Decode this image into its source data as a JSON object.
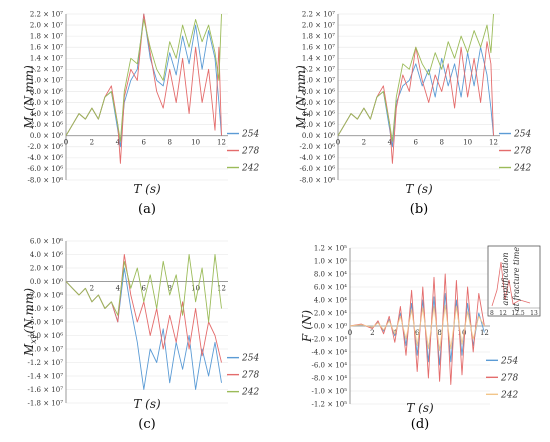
{
  "chart_data": [
    {
      "type": "line",
      "panel_label": "(a)",
      "xlabel": "T (s)",
      "ylabel": "Mx (N.mm)",
      "ylabel_main": "M",
      "ylabel_sub": "x",
      "ylabel_tail": "(N.mm)",
      "xlim": [
        0,
        12.5
      ],
      "ylim": [
        -8000000,
        22000000
      ],
      "x_ticks": [
        0,
        2,
        4,
        6,
        8,
        10,
        12
      ],
      "y_ticks": [
        {
          "v": 22000000,
          "t": "2.2 × 10⁷"
        },
        {
          "v": 20000000,
          "t": "2.0 × 10⁷"
        },
        {
          "v": 18000000,
          "t": "1.8 × 10⁷"
        },
        {
          "v": 16000000,
          "t": "1.6 × 10⁷"
        },
        {
          "v": 14000000,
          "t": "1.4 × 10⁷"
        },
        {
          "v": 12000000,
          "t": "1.2 × 10⁷"
        },
        {
          "v": 10000000,
          "t": "1.0 × 10⁷"
        },
        {
          "v": 8000000,
          "t": "8.0 × 10⁶"
        },
        {
          "v": 6000000,
          "t": "6.0 × 10⁶"
        },
        {
          "v": 4000000,
          "t": "4.0 × 10⁶"
        },
        {
          "v": 2000000,
          "t": "2.0 × 10⁶"
        },
        {
          "v": 0,
          "t": "0.0 × 10⁰"
        },
        {
          "v": -2000000,
          "t": "-2.0 × 10⁶"
        },
        {
          "v": -4000000,
          "t": "-4.0 × 10⁶"
        },
        {
          "v": -6000000,
          "t": "-6.0 × 10⁶"
        },
        {
          "v": -8000000,
          "t": "-8.0 × 10⁶"
        }
      ],
      "legend_position": "right",
      "series": [
        {
          "name": "254",
          "color": "#5b9bd5",
          "x": [
            0,
            0.5,
            1,
            1.5,
            2,
            2.5,
            3,
            3.5,
            4,
            4.2,
            4.5,
            5,
            5.5,
            6,
            6.5,
            7,
            7.5,
            8,
            8.5,
            9,
            9.5,
            10,
            10.5,
            11,
            11.5,
            11.8,
            12
          ],
          "y": [
            0,
            2000000,
            4000000,
            3000000,
            5000000,
            3000000,
            7000000,
            8000000,
            1000000,
            -2000000,
            6000000,
            10000000,
            12000000,
            22000000,
            14000000,
            10000000,
            9000000,
            15000000,
            11000000,
            18000000,
            13000000,
            20000000,
            12000000,
            19000000,
            14000000,
            6000000,
            0
          ]
        },
        {
          "name": "278",
          "color": "#e46c6c",
          "x": [
            0,
            0.5,
            1,
            1.5,
            2,
            2.5,
            3,
            3.5,
            4,
            4.2,
            4.5,
            5,
            5.5,
            6,
            6.5,
            7,
            7.5,
            8,
            8.5,
            9,
            9.5,
            10,
            10.5,
            11,
            11.5,
            11.8,
            12
          ],
          "y": [
            0,
            2000000,
            4000000,
            3000000,
            5000000,
            3000000,
            7000000,
            9000000,
            2000000,
            -5000000,
            7000000,
            12000000,
            10000000,
            22000000,
            15000000,
            8000000,
            5000000,
            12000000,
            6000000,
            14000000,
            4000000,
            16000000,
            6000000,
            12000000,
            1000000,
            16000000,
            0
          ]
        },
        {
          "name": "242",
          "color": "#9bbb59",
          "x": [
            0,
            0.5,
            1,
            1.5,
            2,
            2.5,
            3,
            3.5,
            4,
            4.2,
            4.5,
            5,
            5.5,
            6,
            6.5,
            7,
            7.5,
            8,
            8.5,
            9,
            9.5,
            10,
            10.5,
            11,
            11.5,
            11.8,
            12
          ],
          "y": [
            0,
            2000000,
            4000000,
            3000000,
            5000000,
            3000000,
            7000000,
            8000000,
            2000000,
            -1000000,
            8000000,
            14000000,
            13000000,
            21000000,
            16000000,
            12000000,
            10000000,
            17000000,
            14000000,
            20000000,
            16000000,
            21000000,
            17000000,
            20000000,
            15000000,
            10000000,
            22000000
          ]
        }
      ]
    },
    {
      "type": "line",
      "panel_label": "(b)",
      "xlabel": "T (s)",
      "ylabel": "My (N.mm)",
      "ylabel_main": "M",
      "ylabel_sub": "y",
      "ylabel_tail": "(N.mm)",
      "xlim": [
        0,
        12.5
      ],
      "ylim": [
        -8000000,
        22000000
      ],
      "x_ticks": [
        0,
        2,
        4,
        6,
        8,
        10,
        12
      ],
      "y_ticks": [
        {
          "v": 22000000,
          "t": "2.2 × 10⁷"
        },
        {
          "v": 20000000,
          "t": "2.0 × 10⁷"
        },
        {
          "v": 18000000,
          "t": "1.8 × 10⁷"
        },
        {
          "v": 16000000,
          "t": "1.6 × 10⁷"
        },
        {
          "v": 14000000,
          "t": "1.4 × 10⁷"
        },
        {
          "v": 12000000,
          "t": "1.2 × 10⁷"
        },
        {
          "v": 10000000,
          "t": "1.0 × 10⁷"
        },
        {
          "v": 8000000,
          "t": "8.0 × 10⁶"
        },
        {
          "v": 6000000,
          "t": "6.0 × 10⁶"
        },
        {
          "v": 4000000,
          "t": "4.0 × 10⁶"
        },
        {
          "v": 2000000,
          "t": "2.0 × 10⁶"
        },
        {
          "v": 0,
          "t": "0.0 × 10⁰"
        },
        {
          "v": -2000000,
          "t": "-2.0 × 10⁶"
        },
        {
          "v": -4000000,
          "t": "-4.0 × 10⁶"
        },
        {
          "v": -6000000,
          "t": "-6.0 × 10⁶"
        },
        {
          "v": -8000000,
          "t": "-8.0 × 10⁶"
        }
      ],
      "legend_position": "right",
      "series": [
        {
          "name": "254",
          "color": "#5b9bd5",
          "x": [
            0,
            0.5,
            1,
            1.5,
            2,
            2.5,
            3,
            3.5,
            4,
            4.2,
            4.5,
            5,
            5.5,
            6,
            6.5,
            7,
            7.5,
            8,
            8.5,
            9,
            9.5,
            10,
            10.5,
            11,
            11.5,
            11.8,
            12
          ],
          "y": [
            0,
            2000000,
            4000000,
            3000000,
            5000000,
            3000000,
            7000000,
            8000000,
            1000000,
            -2000000,
            6000000,
            9000000,
            10000000,
            13000000,
            9000000,
            12000000,
            7000000,
            14000000,
            9000000,
            13000000,
            7000000,
            15000000,
            9000000,
            16000000,
            11000000,
            5000000,
            0
          ]
        },
        {
          "name": "278",
          "color": "#e46c6c",
          "x": [
            0,
            0.5,
            1,
            1.5,
            2,
            2.5,
            3,
            3.5,
            4,
            4.2,
            4.5,
            5,
            5.5,
            6,
            6.5,
            7,
            7.5,
            8,
            8.5,
            9,
            9.5,
            10,
            10.5,
            11,
            11.5,
            11.8,
            12
          ],
          "y": [
            0,
            2000000,
            4000000,
            3000000,
            5000000,
            3000000,
            7000000,
            9000000,
            2000000,
            -5000000,
            5000000,
            11000000,
            8000000,
            16000000,
            10000000,
            6000000,
            11000000,
            8000000,
            13000000,
            5000000,
            16000000,
            7000000,
            14000000,
            6000000,
            17000000,
            13000000,
            0
          ]
        },
        {
          "name": "242",
          "color": "#9bbb59",
          "x": [
            0,
            0.5,
            1,
            1.5,
            2,
            2.5,
            3,
            3.5,
            4,
            4.2,
            4.5,
            5,
            5.5,
            6,
            6.5,
            7,
            7.5,
            8,
            8.5,
            9,
            9.5,
            10,
            10.5,
            11,
            11.5,
            11.8,
            12
          ],
          "y": [
            0,
            2000000,
            4000000,
            3000000,
            5000000,
            3000000,
            7000000,
            8000000,
            2000000,
            -1000000,
            7000000,
            13000000,
            12000000,
            16000000,
            13000000,
            11000000,
            15000000,
            12000000,
            17000000,
            14000000,
            18000000,
            15000000,
            19000000,
            16000000,
            20000000,
            15000000,
            22000000
          ]
        }
      ]
    },
    {
      "type": "line",
      "panel_label": "(c)",
      "xlabel": "T (s)",
      "ylabel": "Mxy (N.mm)",
      "ylabel_main": "M",
      "ylabel_sub": "xy",
      "ylabel_tail": "(N.mm)",
      "xlim": [
        0,
        12.5
      ],
      "ylim": [
        -18000000,
        6000000
      ],
      "x_ticks": [
        2,
        4,
        6,
        8,
        10,
        12
      ],
      "y_ticks": [
        {
          "v": 6000000,
          "t": "6.0 × 10⁶"
        },
        {
          "v": 4000000,
          "t": "4.0 × 10⁶"
        },
        {
          "v": 2000000,
          "t": "2.0 × 10⁶"
        },
        {
          "v": 0,
          "t": "0.0 × 10⁰"
        },
        {
          "v": -2000000,
          "t": "-2.0 × 10⁶"
        },
        {
          "v": -4000000,
          "t": "-4.0 × 10⁶"
        },
        {
          "v": -6000000,
          "t": "-6.0 × 10⁶"
        },
        {
          "v": -8000000,
          "t": "-8.0 × 10⁶"
        },
        {
          "v": -10000000,
          "t": "-1.0 × 10⁷"
        },
        {
          "v": -12000000,
          "t": "-1.2 × 10⁷"
        },
        {
          "v": -14000000,
          "t": "-1.4 × 10⁷"
        },
        {
          "v": -16000000,
          "t": "-1.6 × 10⁷"
        },
        {
          "v": -18000000,
          "t": "-1.8 × 10⁷"
        }
      ],
      "legend_position": "right",
      "series": [
        {
          "name": "254",
          "color": "#5b9bd5",
          "x": [
            0,
            0.5,
            1,
            1.5,
            2,
            2.5,
            3,
            3.5,
            4,
            4.5,
            5,
            5.5,
            6,
            6.5,
            7,
            7.5,
            8,
            8.5,
            9,
            9.5,
            10,
            10.5,
            11,
            11.5,
            12
          ],
          "y": [
            0,
            -1000000,
            -2000000,
            -1000000,
            -3000000,
            -2000000,
            -4000000,
            -3000000,
            -6000000,
            2000000,
            -4000000,
            -9000000,
            -16000000,
            -10000000,
            -12000000,
            -7000000,
            -15000000,
            -9000000,
            -13000000,
            -8000000,
            -16000000,
            -10000000,
            -14000000,
            -9000000,
            -15000000
          ]
        },
        {
          "name": "278",
          "color": "#e46c6c",
          "x": [
            0,
            0.5,
            1,
            1.5,
            2,
            2.5,
            3,
            3.5,
            4,
            4.5,
            5,
            5.5,
            6,
            6.5,
            7,
            7.5,
            8,
            8.5,
            9,
            9.5,
            10,
            10.5,
            11,
            11.5,
            12
          ],
          "y": [
            0,
            -1000000,
            -2000000,
            -1000000,
            -3000000,
            -2000000,
            -4000000,
            -3000000,
            -6000000,
            4000000,
            -2000000,
            -6000000,
            -3000000,
            -8000000,
            -4000000,
            -10000000,
            -5000000,
            -9000000,
            -3000000,
            -10000000,
            -4000000,
            -11000000,
            -6000000,
            -8000000,
            -12000000
          ]
        },
        {
          "name": "242",
          "color": "#9bbb59",
          "x": [
            0,
            0.5,
            1,
            1.5,
            2,
            2.5,
            3,
            3.5,
            4,
            4.5,
            5,
            5.5,
            6,
            6.5,
            7,
            7.5,
            8,
            8.5,
            9,
            9.5,
            10,
            10.5,
            11,
            11.5,
            12
          ],
          "y": [
            0,
            -1000000,
            -2000000,
            -1000000,
            -3000000,
            -2000000,
            -4000000,
            -3000000,
            -5000000,
            3000000,
            -1000000,
            2000000,
            -3000000,
            1000000,
            -4000000,
            3000000,
            -2000000,
            1000000,
            -5000000,
            4000000,
            -3000000,
            2000000,
            -6000000,
            4000000,
            -4000000
          ]
        }
      ]
    },
    {
      "type": "line",
      "panel_label": "(d)",
      "xlabel": "T (s)",
      "ylabel": "F (N)",
      "ylabel_main": "F",
      "ylabel_sub": "",
      "ylabel_tail": "(N)",
      "xlim": [
        0,
        12.5
      ],
      "ylim": [
        -120000,
        120000
      ],
      "x_ticks": [
        0,
        2,
        4,
        6,
        8,
        10,
        12
      ],
      "y_ticks": [
        {
          "v": 120000,
          "t": "1.2 × 10⁵"
        },
        {
          "v": 100000,
          "t": "1.0 × 10⁵"
        },
        {
          "v": 80000,
          "t": "8.0 × 10⁴"
        },
        {
          "v": 60000,
          "t": "6.0 × 10⁴"
        },
        {
          "v": 40000,
          "t": "4.0 × 10⁴"
        },
        {
          "v": 20000,
          "t": "2.0 × 10⁴"
        },
        {
          "v": 0,
          "t": "0.0 × 10⁰"
        },
        {
          "v": -20000,
          "t": "-2.0 × 10⁴"
        },
        {
          "v": -40000,
          "t": "-4.0 × 10⁴"
        },
        {
          "v": -60000,
          "t": "-6.0 × 10⁴"
        },
        {
          "v": -80000,
          "t": "-8.0 × 10⁴"
        },
        {
          "v": -100000,
          "t": "-1.0 × 10⁵"
        },
        {
          "v": -120000,
          "t": "-1.2 × 10⁵"
        }
      ],
      "legend_position": "right",
      "annotation": {
        "lines": [
          "amplification",
          "at fracture time"
        ],
        "x_ticks": [
          {
            "v": 12,
            "t": "12"
          },
          {
            "v": 12.5,
            "t": "12.5"
          },
          {
            "v": 13,
            "t": "13"
          }
        ],
        "x_prefix": "8"
      },
      "series": [
        {
          "name": "254",
          "color": "#5b9bd5",
          "x": [
            0,
            1,
            2,
            2.5,
            3,
            3.5,
            4,
            4.5,
            5,
            5.5,
            6,
            6.5,
            7,
            7.5,
            8,
            8.5,
            9,
            9.5,
            10,
            10.5,
            11,
            11.5,
            12
          ],
          "y": [
            0,
            2000,
            -3000,
            6000,
            -8000,
            10000,
            -15000,
            20000,
            -30000,
            35000,
            -45000,
            40000,
            -55000,
            45000,
            -60000,
            50000,
            -55000,
            40000,
            -45000,
            35000,
            -30000,
            20000,
            -10000
          ]
        },
        {
          "name": "278",
          "color": "#e46c6c",
          "x": [
            0,
            1,
            2,
            2.5,
            3,
            3.5,
            4,
            4.5,
            5,
            5.5,
            6,
            6.5,
            7,
            7.5,
            8,
            8.5,
            9,
            9.5,
            10,
            10.5,
            11,
            11.5,
            12
          ],
          "y": [
            0,
            3000,
            -4000,
            8000,
            -12000,
            15000,
            -25000,
            30000,
            -45000,
            55000,
            -70000,
            60000,
            -80000,
            75000,
            -85000,
            80000,
            -90000,
            70000,
            -75000,
            60000,
            -40000,
            50000,
            0
          ]
        },
        {
          "name": "242",
          "color": "#f2c58a",
          "x": [
            0,
            1,
            2,
            2.5,
            3,
            3.5,
            4,
            4.5,
            5,
            5.5,
            6,
            6.5,
            7,
            7.5,
            8,
            8.5,
            9,
            9.5,
            10,
            10.5,
            11,
            11.5,
            12
          ],
          "y": [
            0,
            2000,
            -2000,
            5000,
            -6000,
            8000,
            -12000,
            15000,
            -20000,
            25000,
            -30000,
            28000,
            -35000,
            30000,
            -38000,
            32000,
            -35000,
            30000,
            -28000,
            22000,
            -20000,
            15000,
            0
          ]
        }
      ]
    }
  ]
}
